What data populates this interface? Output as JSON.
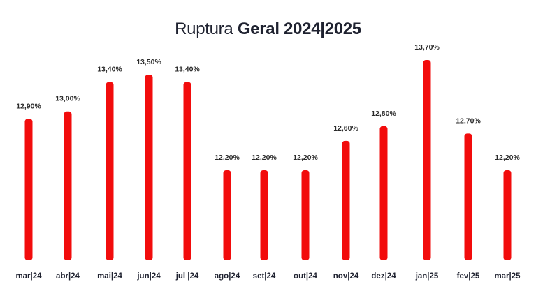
{
  "chart_data": {
    "type": "bar",
    "title_prefix": "Ruptura",
    "title_bold": "Geral 2024|2025",
    "categories": [
      "mar|24",
      "abr|24",
      "mai|24",
      "jun|24",
      "jul |24",
      "ago|24",
      "set|24",
      "out|24",
      "nov|24",
      "dez|24",
      "jan|25",
      "fev|25",
      "mar|25"
    ],
    "values": [
      12.9,
      13.0,
      13.4,
      13.5,
      13.4,
      12.2,
      12.2,
      12.2,
      12.6,
      12.8,
      13.7,
      12.7,
      12.2
    ],
    "value_labels": [
      "12,90%",
      "13,00%",
      "13,40%",
      "13,50%",
      "13,40%",
      "12,20%",
      "12,20%",
      "12,20%",
      "12,60%",
      "12,80%",
      "13,70%",
      "12,70%",
      "12,20%"
    ],
    "xlabel": "",
    "ylabel": "",
    "grid": false,
    "bar_color": "#f20c0c"
  }
}
